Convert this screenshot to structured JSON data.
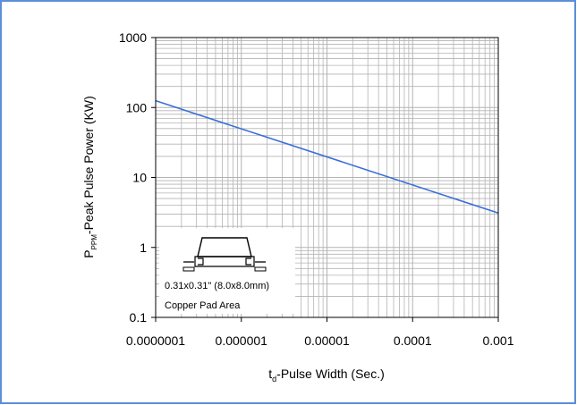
{
  "chart_data": {
    "type": "line",
    "x_scale": "log",
    "y_scale": "log",
    "xlim": [
      1e-07,
      0.001
    ],
    "ylim": [
      0.1,
      1000
    ],
    "x_ticks": [
      "0.0000001",
      "0.000001",
      "0.00001",
      "0.0001",
      "0.001"
    ],
    "y_ticks": [
      "1000",
      "100",
      "10",
      "1",
      "0.1"
    ],
    "xlabel_main": "t",
    "xlabel_sub": "d",
    "xlabel_rest": "-Pulse Width (Sec.)",
    "ylabel_main": "P",
    "ylabel_sub": "PPM",
    "ylabel_rest": "-Peak Pulse Power (KW)",
    "grid": true,
    "series": [
      {
        "x": [
          1e-07,
          0.001
        ],
        "y": [
          125,
          3.1
        ],
        "color": "#3a6fd8"
      }
    ],
    "inset": {
      "line1": "0.31x0.31\" (8.0x8.0mm)",
      "line2": "Copper Pad Area"
    }
  },
  "colors": {
    "frame_border": "#5b8fd9",
    "grid": "#b3b3b3",
    "line": "#3a6fd8"
  }
}
